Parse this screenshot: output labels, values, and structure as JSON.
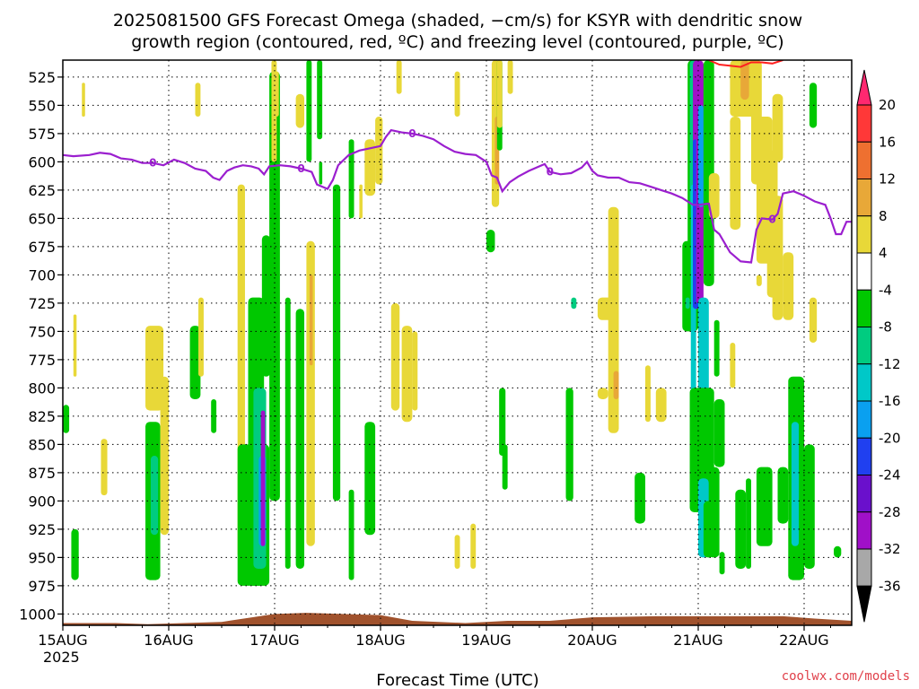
{
  "chart_data": {
    "type": "heatmap",
    "title_line1": "2025081500 GFS Forecast Omega (shaded, −cm/s) for KSYR with dendritic snow",
    "title_line2": "growth region (contoured, red, ºC) and freezing level (contoured, purple, ºC)",
    "xlabel": "Forecast Time (UTC)",
    "credit": "coolwx.com/models",
    "x_ticks": [
      "15AUG",
      "16AUG",
      "17AUG",
      "18AUG",
      "19AUG",
      "20AUG",
      "21AUG",
      "22AUG"
    ],
    "x_tick_year": "2025",
    "x_range_days": [
      0,
      7.45
    ],
    "y_ticks": [
      525,
      550,
      575,
      600,
      625,
      650,
      675,
      700,
      725,
      750,
      775,
      800,
      825,
      850,
      875,
      900,
      925,
      950,
      975,
      1000
    ],
    "y_range_hpa": [
      1010,
      510
    ],
    "colorbar": {
      "levels": [
        20,
        16,
        12,
        8,
        4,
        -4,
        -8,
        -12,
        -16,
        -20,
        -24,
        -28,
        -32,
        -36
      ],
      "colors": [
        "#ff2870",
        "#ff3838",
        "#ee7030",
        "#e8a838",
        "#e8d838",
        "#ffffff",
        "#00c800",
        "#00cc80",
        "#00c8c8",
        "#0aa0f0",
        "#2040f0",
        "#6a10cc",
        "#a010c8",
        "#a8a8a8",
        "#000000"
      ]
    },
    "freezing_level": {
      "color": "#9b1fcf",
      "label": "0",
      "points": [
        [
          0,
          594
        ],
        [
          0.1,
          595
        ],
        [
          0.25,
          594
        ],
        [
          0.35,
          592
        ],
        [
          0.45,
          593
        ],
        [
          0.55,
          597
        ],
        [
          0.65,
          598
        ],
        [
          0.75,
          601
        ],
        [
          0.85,
          601
        ],
        [
          0.95,
          603
        ],
        [
          1.05,
          598
        ],
        [
          1.15,
          601
        ],
        [
          1.25,
          606
        ],
        [
          1.35,
          608
        ],
        [
          1.42,
          614
        ],
        [
          1.48,
          616
        ],
        [
          1.55,
          608
        ],
        [
          1.62,
          605
        ],
        [
          1.7,
          603
        ],
        [
          1.78,
          604
        ],
        [
          1.85,
          606
        ],
        [
          1.9,
          611
        ],
        [
          1.95,
          604
        ],
        [
          2.05,
          603
        ],
        [
          2.15,
          604
        ],
        [
          2.25,
          606
        ],
        [
          2.35,
          609
        ],
        [
          2.4,
          620
        ],
        [
          2.45,
          622
        ],
        [
          2.5,
          624
        ],
        [
          2.55,
          616
        ],
        [
          2.6,
          603
        ],
        [
          2.7,
          594
        ],
        [
          2.8,
          590
        ],
        [
          2.9,
          588
        ],
        [
          3.0,
          586
        ],
        [
          3.05,
          578
        ],
        [
          3.1,
          572
        ],
        [
          3.2,
          574
        ],
        [
          3.3,
          575
        ],
        [
          3.4,
          577
        ],
        [
          3.5,
          580
        ],
        [
          3.6,
          586
        ],
        [
          3.7,
          591
        ],
        [
          3.8,
          593
        ],
        [
          3.9,
          594
        ],
        [
          4.0,
          600
        ],
        [
          4.05,
          612
        ],
        [
          4.1,
          614
        ],
        [
          4.15,
          626
        ],
        [
          4.22,
          618
        ],
        [
          4.3,
          613
        ],
        [
          4.4,
          608
        ],
        [
          4.5,
          604
        ],
        [
          4.55,
          602
        ],
        [
          4.6,
          609
        ],
        [
          4.7,
          611
        ],
        [
          4.8,
          610
        ],
        [
          4.9,
          605
        ],
        [
          4.95,
          600
        ],
        [
          5.0,
          608
        ],
        [
          5.05,
          612
        ],
        [
          5.15,
          614
        ],
        [
          5.25,
          614
        ],
        [
          5.35,
          618
        ],
        [
          5.45,
          619
        ],
        [
          5.55,
          622
        ],
        [
          5.65,
          625
        ],
        [
          5.75,
          628
        ],
        [
          5.85,
          632
        ],
        [
          5.95,
          638
        ],
        [
          6.0,
          638
        ],
        [
          6.1,
          637
        ],
        [
          6.15,
          660
        ],
        [
          6.2,
          664
        ],
        [
          6.3,
          680
        ],
        [
          6.4,
          688
        ],
        [
          6.5,
          689
        ],
        [
          6.55,
          660
        ],
        [
          6.6,
          650
        ],
        [
          6.7,
          651
        ],
        [
          6.75,
          646
        ],
        [
          6.8,
          628
        ],
        [
          6.9,
          626
        ],
        [
          7.0,
          630
        ],
        [
          7.1,
          635
        ],
        [
          7.2,
          638
        ],
        [
          7.25,
          650
        ],
        [
          7.3,
          664
        ],
        [
          7.35,
          664
        ],
        [
          7.4,
          653
        ],
        [
          7.45,
          653
        ]
      ]
    },
    "dendritic_zone": {
      "color": "#ff2020",
      "points": [
        [
          6.1,
          510
        ],
        [
          6.2,
          514
        ],
        [
          6.3,
          515
        ],
        [
          6.4,
          516
        ],
        [
          6.5,
          512
        ],
        [
          6.6,
          512
        ],
        [
          6.7,
          513
        ],
        [
          6.8,
          510
        ]
      ]
    },
    "omega_cells": [
      {
        "x0": 0.0,
        "x1": 0.06,
        "p0": 815,
        "p1": 840,
        "v": -5
      },
      {
        "x0": 0.08,
        "x1": 0.15,
        "p0": 925,
        "p1": 970,
        "v": -7
      },
      {
        "x0": 0.1,
        "x1": 0.13,
        "p0": 735,
        "p1": 790,
        "v": 5
      },
      {
        "x0": 0.18,
        "x1": 0.21,
        "p0": 530,
        "p1": 560,
        "v": 5
      },
      {
        "x0": 0.36,
        "x1": 0.42,
        "p0": 845,
        "p1": 895,
        "v": 5
      },
      {
        "x0": 0.78,
        "x1": 0.92,
        "p0": 830,
        "p1": 970,
        "v": -6
      },
      {
        "x0": 0.83,
        "x1": 0.9,
        "p0": 860,
        "p1": 930,
        "v": -10
      },
      {
        "x0": 0.78,
        "x1": 0.95,
        "p0": 745,
        "p1": 820,
        "v": 5
      },
      {
        "x0": 0.92,
        "x1": 1.0,
        "p0": 790,
        "p1": 930,
        "v": 5
      },
      {
        "x0": 1.2,
        "x1": 1.3,
        "p0": 745,
        "p1": 810,
        "v": -5
      },
      {
        "x0": 1.28,
        "x1": 1.33,
        "p0": 720,
        "p1": 790,
        "v": 5
      },
      {
        "x0": 1.25,
        "x1": 1.3,
        "p0": 530,
        "p1": 560,
        "v": 5
      },
      {
        "x0": 1.4,
        "x1": 1.45,
        "p0": 810,
        "p1": 840,
        "v": -5
      },
      {
        "x0": 1.65,
        "x1": 1.72,
        "p0": 620,
        "p1": 950,
        "v": 5
      },
      {
        "x0": 1.65,
        "x1": 1.95,
        "p0": 850,
        "p1": 975,
        "v": -6
      },
      {
        "x0": 1.75,
        "x1": 1.9,
        "p0": 720,
        "p1": 975,
        "v": -5
      },
      {
        "x0": 1.8,
        "x1": 1.92,
        "p0": 800,
        "p1": 960,
        "v": -11
      },
      {
        "x0": 1.85,
        "x1": 1.92,
        "p0": 860,
        "p1": 940,
        "v": -17
      },
      {
        "x0": 1.87,
        "x1": 1.91,
        "p0": 820,
        "p1": 940,
        "v": -30
      },
      {
        "x0": 1.88,
        "x1": 1.96,
        "p0": 665,
        "p1": 790,
        "v": -5
      },
      {
        "x0": 1.95,
        "x1": 2.05,
        "p0": 520,
        "p1": 900,
        "v": -5
      },
      {
        "x0": 1.97,
        "x1": 2.02,
        "p0": 510,
        "p1": 600,
        "v": 5
      },
      {
        "x0": 2.0,
        "x1": 2.04,
        "p0": 520,
        "p1": 560,
        "v": 5
      },
      {
        "x0": 2.1,
        "x1": 2.15,
        "p0": 720,
        "p1": 960,
        "v": -5
      },
      {
        "x0": 2.2,
        "x1": 2.28,
        "p0": 540,
        "p1": 570,
        "v": 5
      },
      {
        "x0": 2.2,
        "x1": 2.28,
        "p0": 730,
        "p1": 960,
        "v": -6
      },
      {
        "x0": 2.3,
        "x1": 2.38,
        "p0": 670,
        "p1": 940,
        "v": 5
      },
      {
        "x0": 2.33,
        "x1": 2.36,
        "p0": 700,
        "p1": 780,
        "v": 9
      },
      {
        "x0": 2.3,
        "x1": 2.35,
        "p0": 510,
        "p1": 600,
        "v": -5
      },
      {
        "x0": 2.4,
        "x1": 2.45,
        "p0": 510,
        "p1": 580,
        "v": -5
      },
      {
        "x0": 2.42,
        "x1": 2.45,
        "p0": 600,
        "p1": 620,
        "v": -5
      },
      {
        "x0": 2.55,
        "x1": 2.62,
        "p0": 620,
        "p1": 900,
        "v": -5
      },
      {
        "x0": 2.7,
        "x1": 2.75,
        "p0": 580,
        "p1": 650,
        "v": -5
      },
      {
        "x0": 2.7,
        "x1": 2.75,
        "p0": 890,
        "p1": 970,
        "v": -5
      },
      {
        "x0": 2.8,
        "x1": 2.83,
        "p0": 620,
        "p1": 650,
        "v": 5
      },
      {
        "x0": 2.85,
        "x1": 2.95,
        "p0": 580,
        "p1": 630,
        "v": 5
      },
      {
        "x0": 2.85,
        "x1": 2.95,
        "p0": 830,
        "p1": 930,
        "v": -7
      },
      {
        "x0": 2.95,
        "x1": 3.02,
        "p0": 560,
        "p1": 620,
        "v": 5
      },
      {
        "x0": 3.1,
        "x1": 3.18,
        "p0": 725,
        "p1": 820,
        "v": 5
      },
      {
        "x0": 3.15,
        "x1": 3.2,
        "p0": 510,
        "p1": 540,
        "v": 5
      },
      {
        "x0": 3.2,
        "x1": 3.3,
        "p0": 745,
        "p1": 830,
        "v": 5
      },
      {
        "x0": 3.3,
        "x1": 3.35,
        "p0": 750,
        "p1": 820,
        "v": 5
      },
      {
        "x0": 3.7,
        "x1": 3.75,
        "p0": 930,
        "p1": 960,
        "v": 5
      },
      {
        "x0": 3.85,
        "x1": 3.9,
        "p0": 920,
        "p1": 960,
        "v": 5
      },
      {
        "x0": 3.7,
        "x1": 3.75,
        "p0": 520,
        "p1": 560,
        "v": 5
      },
      {
        "x0": 4.0,
        "x1": 4.08,
        "p0": 660,
        "p1": 680,
        "v": -5
      },
      {
        "x0": 4.05,
        "x1": 4.12,
        "p0": 510,
        "p1": 640,
        "v": 5
      },
      {
        "x0": 4.08,
        "x1": 4.12,
        "p0": 560,
        "p1": 620,
        "v": 9
      },
      {
        "x0": 4.1,
        "x1": 4.15,
        "p0": 510,
        "p1": 590,
        "v": -5
      },
      {
        "x0": 4.12,
        "x1": 4.18,
        "p0": 800,
        "p1": 860,
        "v": -5
      },
      {
        "x0": 4.1,
        "x1": 4.15,
        "p0": 510,
        "p1": 570,
        "v": 5
      },
      {
        "x0": 4.15,
        "x1": 4.2,
        "p0": 850,
        "p1": 890,
        "v": -5
      },
      {
        "x0": 4.2,
        "x1": 4.25,
        "p0": 510,
        "p1": 540,
        "v": 5
      },
      {
        "x0": 4.75,
        "x1": 4.82,
        "p0": 800,
        "p1": 900,
        "v": -6
      },
      {
        "x0": 4.8,
        "x1": 4.85,
        "p0": 720,
        "p1": 730,
        "v": -10
      },
      {
        "x0": 5.05,
        "x1": 5.25,
        "p0": 720,
        "p1": 740,
        "v": 5
      },
      {
        "x0": 5.15,
        "x1": 5.25,
        "p0": 640,
        "p1": 840,
        "v": 5
      },
      {
        "x0": 5.2,
        "x1": 5.25,
        "p0": 785,
        "p1": 810,
        "v": 9
      },
      {
        "x0": 5.05,
        "x1": 5.15,
        "p0": 800,
        "p1": 810,
        "v": 5
      },
      {
        "x0": 5.4,
        "x1": 5.5,
        "p0": 875,
        "p1": 920,
        "v": -6
      },
      {
        "x0": 5.5,
        "x1": 5.55,
        "p0": 780,
        "p1": 830,
        "v": 5
      },
      {
        "x0": 5.6,
        "x1": 5.7,
        "p0": 800,
        "p1": 830,
        "v": 5
      },
      {
        "x0": 5.85,
        "x1": 6.0,
        "p0": 670,
        "p1": 750,
        "v": -6
      },
      {
        "x0": 5.88,
        "x1": 5.92,
        "p0": 720,
        "p1": 730,
        "v": -10
      },
      {
        "x0": 5.9,
        "x1": 6.05,
        "p0": 510,
        "p1": 680,
        "v": -6
      },
      {
        "x0": 5.92,
        "x1": 6.0,
        "p0": 510,
        "p1": 640,
        "v": -10
      },
      {
        "x0": 5.93,
        "x1": 5.98,
        "p0": 620,
        "p1": 900,
        "v": -12
      },
      {
        "x0": 5.95,
        "x1": 6.05,
        "p0": 510,
        "p1": 730,
        "v": -29
      },
      {
        "x0": 5.95,
        "x1": 6.0,
        "p0": 580,
        "p1": 730,
        "v": -22
      },
      {
        "x0": 5.98,
        "x1": 6.02,
        "p0": 510,
        "p1": 725,
        "v": -29
      },
      {
        "x0": 6.0,
        "x1": 6.05,
        "p0": 550,
        "p1": 640,
        "v": -17
      },
      {
        "x0": 6.0,
        "x1": 6.1,
        "p0": 720,
        "p1": 900,
        "v": -14
      },
      {
        "x0": 5.92,
        "x1": 6.15,
        "p0": 800,
        "p1": 910,
        "v": -6
      },
      {
        "x0": 6.0,
        "x1": 6.1,
        "p0": 880,
        "p1": 950,
        "v": -12
      },
      {
        "x0": 6.05,
        "x1": 6.15,
        "p0": 510,
        "p1": 710,
        "v": -6
      },
      {
        "x0": 6.05,
        "x1": 6.15,
        "p0": 900,
        "p1": 950,
        "v": -6
      },
      {
        "x0": 6.1,
        "x1": 6.2,
        "p0": 610,
        "p1": 650,
        "v": 5
      },
      {
        "x0": 6.15,
        "x1": 6.2,
        "p0": 740,
        "p1": 790,
        "v": -6
      },
      {
        "x0": 6.15,
        "x1": 6.25,
        "p0": 810,
        "p1": 870,
        "v": -6
      },
      {
        "x0": 6.1,
        "x1": 6.2,
        "p0": 870,
        "p1": 950,
        "v": -6
      },
      {
        "x0": 6.2,
        "x1": 6.25,
        "p0": 945,
        "p1": 965,
        "v": -6
      },
      {
        "x0": 6.3,
        "x1": 6.35,
        "p0": 760,
        "p1": 800,
        "v": 5
      },
      {
        "x0": 6.35,
        "x1": 6.45,
        "p0": 890,
        "p1": 960,
        "v": -6
      },
      {
        "x0": 6.3,
        "x1": 6.5,
        "p0": 510,
        "p1": 560,
        "v": 5
      },
      {
        "x0": 6.3,
        "x1": 6.4,
        "p0": 560,
        "p1": 660,
        "v": 5
      },
      {
        "x0": 6.4,
        "x1": 6.55,
        "p0": 510,
        "p1": 560,
        "v": 5
      },
      {
        "x0": 6.4,
        "x1": 6.48,
        "p0": 510,
        "p1": 545,
        "v": 9
      },
      {
        "x0": 6.5,
        "x1": 6.6,
        "p0": 510,
        "p1": 620,
        "v": 5
      },
      {
        "x0": 6.55,
        "x1": 6.7,
        "p0": 560,
        "p1": 690,
        "v": 5
      },
      {
        "x0": 6.65,
        "x1": 6.75,
        "p0": 590,
        "p1": 720,
        "v": 5
      },
      {
        "x0": 6.7,
        "x1": 6.8,
        "p0": 630,
        "p1": 740,
        "v": 5
      },
      {
        "x0": 6.55,
        "x1": 6.6,
        "p0": 700,
        "p1": 710,
        "v": 5
      },
      {
        "x0": 6.45,
        "x1": 6.5,
        "p0": 880,
        "p1": 960,
        "v": -6
      },
      {
        "x0": 6.55,
        "x1": 6.7,
        "p0": 870,
        "p1": 940,
        "v": -6
      },
      {
        "x0": 6.85,
        "x1": 7.0,
        "p0": 790,
        "p1": 970,
        "v": -6
      },
      {
        "x0": 6.88,
        "x1": 6.95,
        "p0": 830,
        "p1": 940,
        "v": -12
      },
      {
        "x0": 6.9,
        "x1": 6.95,
        "p0": 870,
        "p1": 900,
        "v": -14
      },
      {
        "x0": 7.0,
        "x1": 7.1,
        "p0": 850,
        "p1": 960,
        "v": -6
      },
      {
        "x0": 7.05,
        "x1": 7.12,
        "p0": 720,
        "p1": 760,
        "v": 5
      },
      {
        "x0": 7.05,
        "x1": 7.12,
        "p0": 530,
        "p1": 570,
        "v": -6
      },
      {
        "x0": 7.28,
        "x1": 7.35,
        "p0": 940,
        "p1": 950,
        "v": -6
      },
      {
        "x0": 6.75,
        "x1": 6.85,
        "p0": 870,
        "p1": 920,
        "v": -6
      },
      {
        "x0": 6.8,
        "x1": 6.9,
        "p0": 680,
        "p1": 740,
        "v": 5
      },
      {
        "x0": 6.7,
        "x1": 6.8,
        "p0": 540,
        "p1": 600,
        "v": 5
      }
    ],
    "terrain": {
      "color": "#a0522d",
      "points": [
        [
          0,
          1008
        ],
        [
          0.5,
          1008
        ],
        [
          0.8,
          1009
        ],
        [
          1.5,
          1007
        ],
        [
          2.0,
          1000
        ],
        [
          2.3,
          999
        ],
        [
          3.0,
          1001
        ],
        [
          3.3,
          1006
        ],
        [
          3.8,
          1008
        ],
        [
          4.2,
          1006
        ],
        [
          4.6,
          1006
        ],
        [
          5.0,
          1003
        ],
        [
          5.6,
          1002
        ],
        [
          6.2,
          1002
        ],
        [
          6.8,
          1002
        ],
        [
          7.1,
          1004
        ],
        [
          7.45,
          1006
        ]
      ]
    }
  }
}
